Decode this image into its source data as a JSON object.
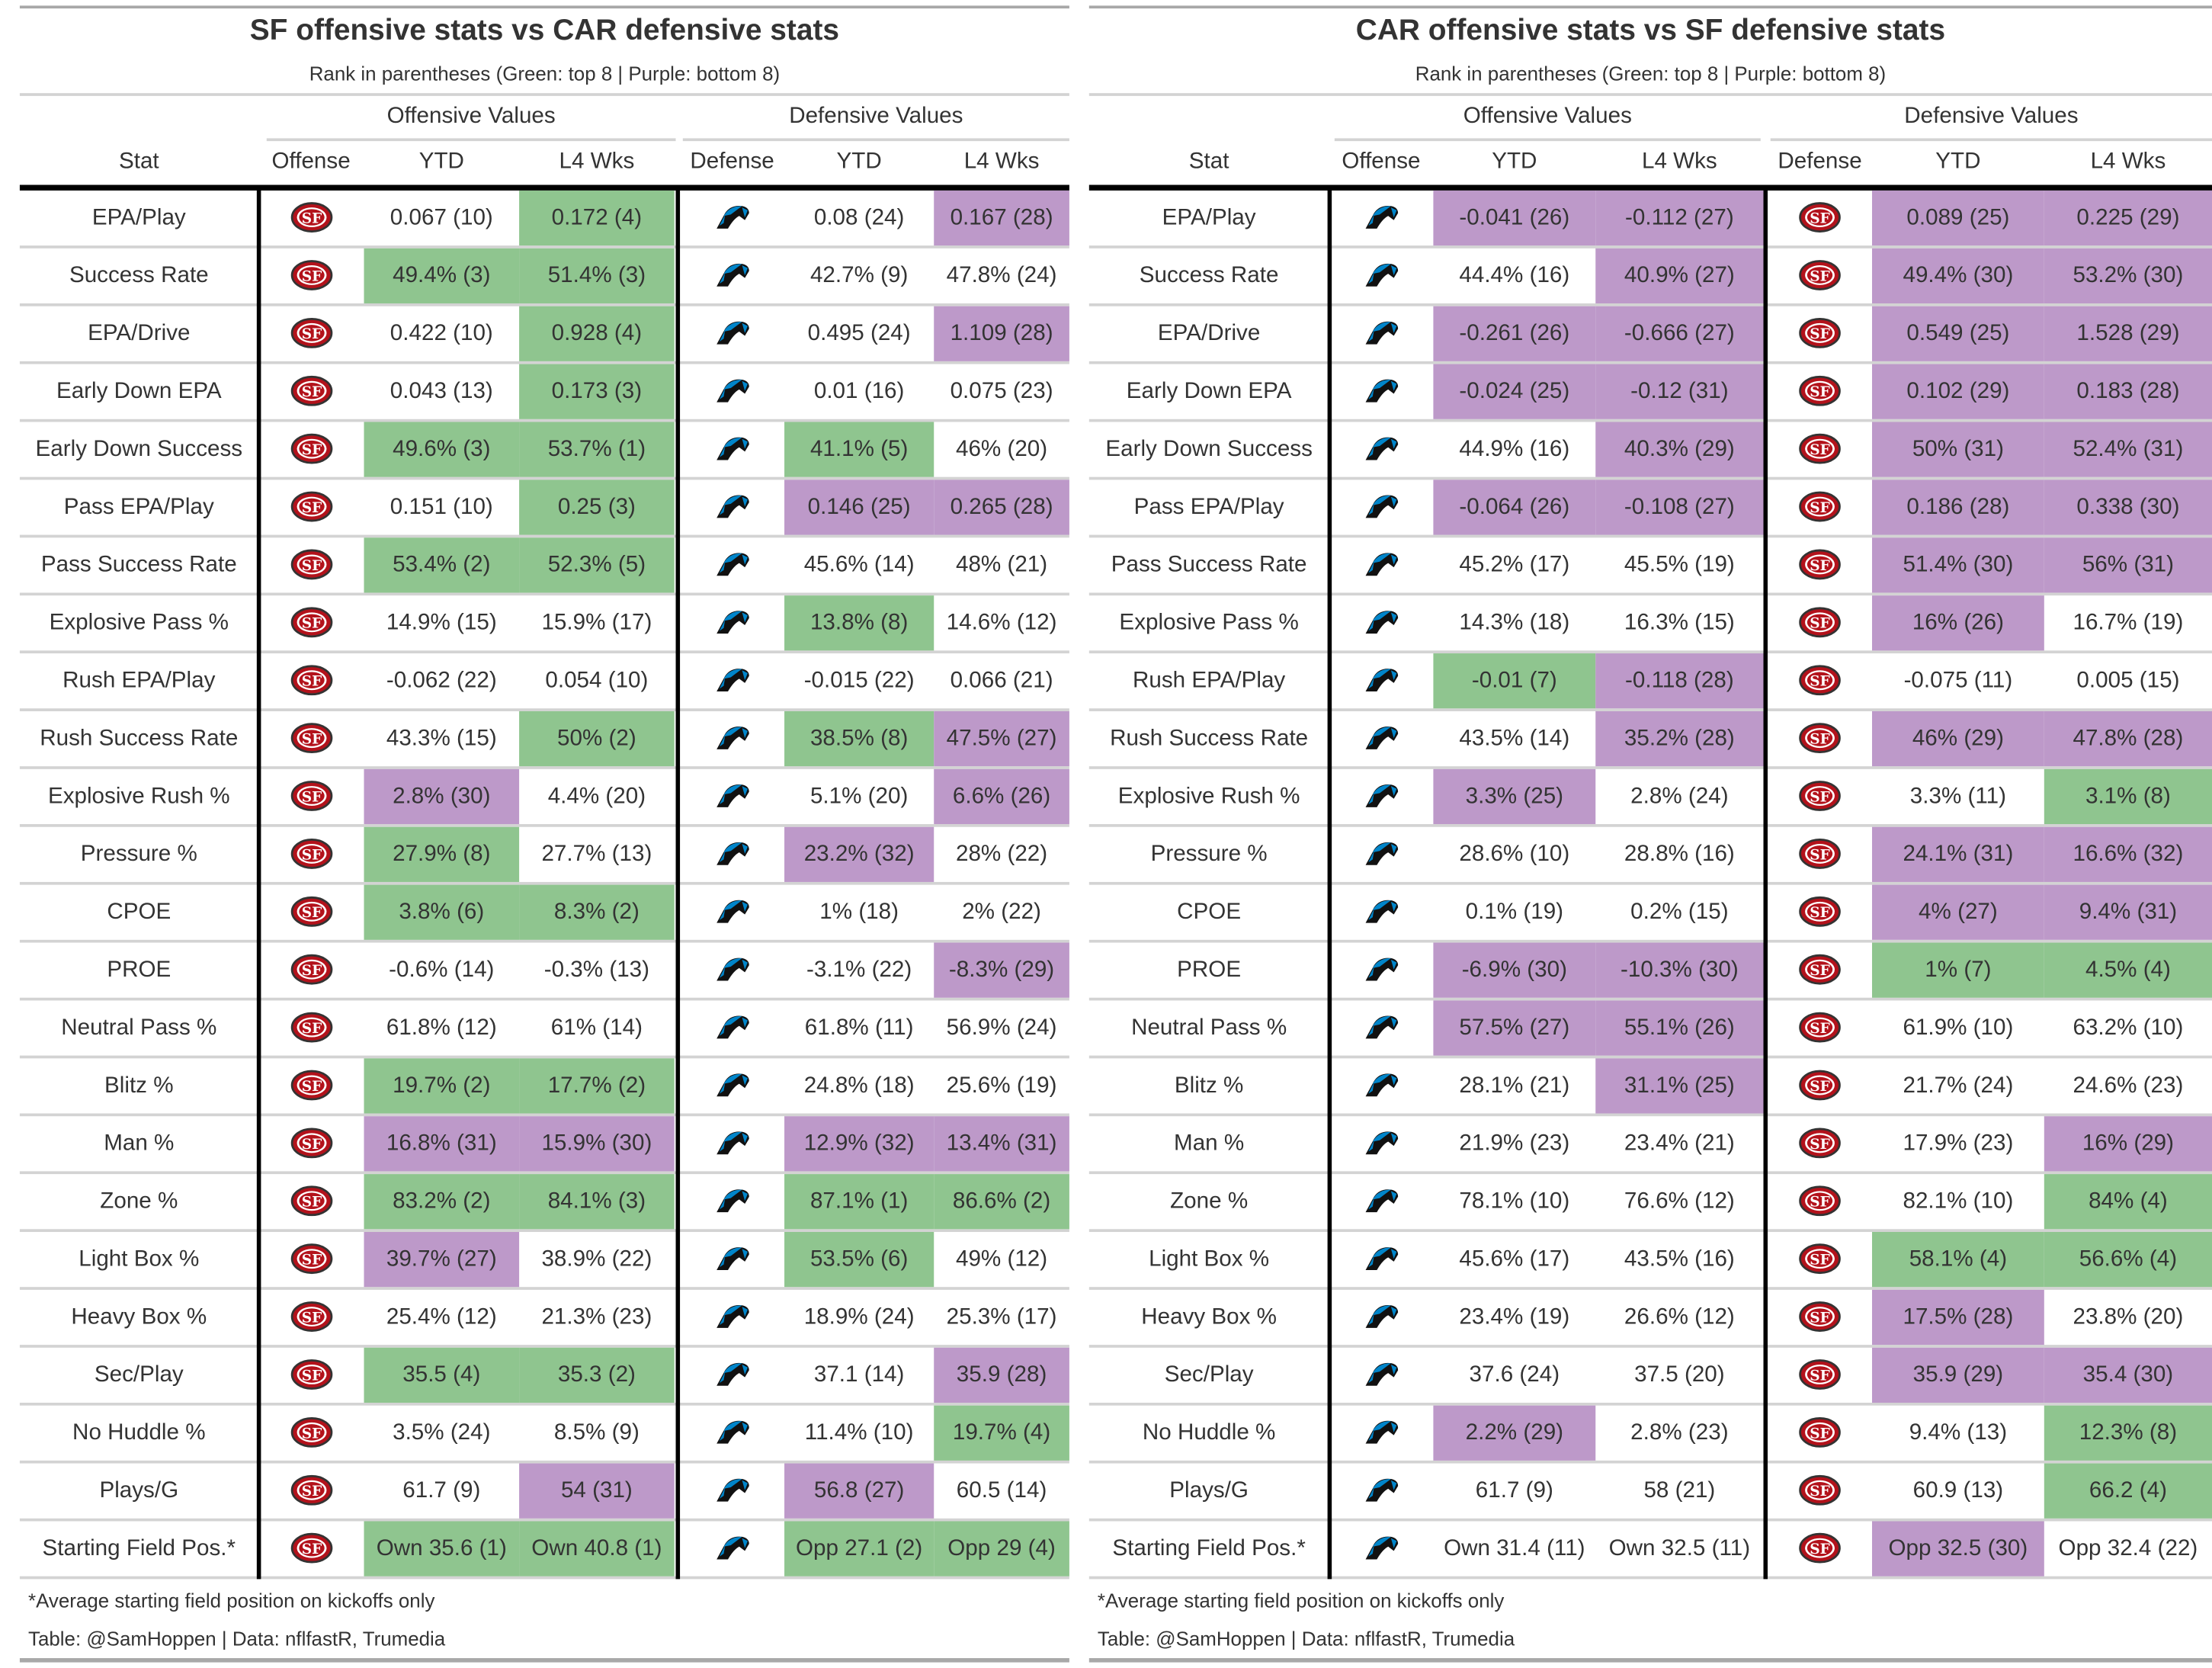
{
  "colors": {
    "green": "#8fc58f",
    "purple": "#bd99c9"
  },
  "tables": [
    {
      "title": "SF offensive stats vs CAR defensive stats",
      "subtitle": "Rank in parentheses (Green: top 8 | Purple: bottom 8)",
      "spanners": [
        "Offensive Values",
        "Defensive Values"
      ],
      "columns": [
        "Stat",
        "Offense",
        "YTD",
        "L4 Wks",
        "Defense",
        "YTD",
        "L4 Wks"
      ],
      "offense_logo": "sf-49ers-logo-icon",
      "defense_logo": "car-panthers-logo-icon",
      "footnote": "*Average starting field position on kickoffs only",
      "credit": "Table: @SamHoppen | Data: nflfastR, Trumedia",
      "rows": [
        {
          "stat": "EPA/Play",
          "cells": [
            [
              "0.067 (10)",
              ""
            ],
            [
              "0.172 (4)",
              "g"
            ],
            [
              "0.08 (24)",
              ""
            ],
            [
              "0.167 (28)",
              "p"
            ]
          ]
        },
        {
          "stat": "Success Rate",
          "cells": [
            [
              "49.4% (3)",
              "g"
            ],
            [
              "51.4% (3)",
              "g"
            ],
            [
              "42.7% (9)",
              ""
            ],
            [
              "47.8% (24)",
              ""
            ]
          ]
        },
        {
          "stat": "EPA/Drive",
          "cells": [
            [
              "0.422 (10)",
              ""
            ],
            [
              "0.928 (4)",
              "g"
            ],
            [
              "0.495 (24)",
              ""
            ],
            [
              "1.109 (28)",
              "p"
            ]
          ]
        },
        {
          "stat": "Early Down EPA",
          "cells": [
            [
              "0.043 (13)",
              ""
            ],
            [
              "0.173 (3)",
              "g"
            ],
            [
              "0.01 (16)",
              ""
            ],
            [
              "0.075 (23)",
              ""
            ]
          ]
        },
        {
          "stat": "Early Down Success",
          "cells": [
            [
              "49.6% (3)",
              "g"
            ],
            [
              "53.7% (1)",
              "g"
            ],
            [
              "41.1% (5)",
              "g"
            ],
            [
              "46% (20)",
              ""
            ]
          ]
        },
        {
          "stat": "Pass EPA/Play",
          "cells": [
            [
              "0.151 (10)",
              ""
            ],
            [
              "0.25 (3)",
              "g"
            ],
            [
              "0.146 (25)",
              "p"
            ],
            [
              "0.265 (28)",
              "p"
            ]
          ]
        },
        {
          "stat": "Pass Success Rate",
          "cells": [
            [
              "53.4% (2)",
              "g"
            ],
            [
              "52.3% (5)",
              "g"
            ],
            [
              "45.6% (14)",
              ""
            ],
            [
              "48% (21)",
              ""
            ]
          ]
        },
        {
          "stat": "Explosive Pass %",
          "cells": [
            [
              "14.9% (15)",
              ""
            ],
            [
              "15.9% (17)",
              ""
            ],
            [
              "13.8% (8)",
              "g"
            ],
            [
              "14.6% (12)",
              ""
            ]
          ]
        },
        {
          "stat": "Rush EPA/Play",
          "cells": [
            [
              "-0.062 (22)",
              ""
            ],
            [
              "0.054 (10)",
              ""
            ],
            [
              "-0.015 (22)",
              ""
            ],
            [
              "0.066 (21)",
              ""
            ]
          ]
        },
        {
          "stat": "Rush Success Rate",
          "cells": [
            [
              "43.3% (15)",
              ""
            ],
            [
              "50% (2)",
              "g"
            ],
            [
              "38.5% (8)",
              "g"
            ],
            [
              "47.5% (27)",
              "p"
            ]
          ]
        },
        {
          "stat": "Explosive Rush %",
          "cells": [
            [
              "2.8% (30)",
              "p"
            ],
            [
              "4.4% (20)",
              ""
            ],
            [
              "5.1% (20)",
              ""
            ],
            [
              "6.6% (26)",
              "p"
            ]
          ]
        },
        {
          "stat": "Pressure %",
          "cells": [
            [
              "27.9% (8)",
              "g"
            ],
            [
              "27.7% (13)",
              ""
            ],
            [
              "23.2% (32)",
              "p"
            ],
            [
              "28% (22)",
              ""
            ]
          ]
        },
        {
          "stat": "CPOE",
          "cells": [
            [
              "3.8% (6)",
              "g"
            ],
            [
              "8.3% (2)",
              "g"
            ],
            [
              "1% (18)",
              ""
            ],
            [
              "2% (22)",
              ""
            ]
          ]
        },
        {
          "stat": "PROE",
          "cells": [
            [
              "-0.6% (14)",
              ""
            ],
            [
              "-0.3% (13)",
              ""
            ],
            [
              "-3.1% (22)",
              ""
            ],
            [
              "-8.3% (29)",
              "p"
            ]
          ]
        },
        {
          "stat": "Neutral Pass %",
          "cells": [
            [
              "61.8% (12)",
              ""
            ],
            [
              "61% (14)",
              ""
            ],
            [
              "61.8% (11)",
              ""
            ],
            [
              "56.9% (24)",
              ""
            ]
          ]
        },
        {
          "stat": "Blitz %",
          "cells": [
            [
              "19.7% (2)",
              "g"
            ],
            [
              "17.7% (2)",
              "g"
            ],
            [
              "24.8% (18)",
              ""
            ],
            [
              "25.6% (19)",
              ""
            ]
          ]
        },
        {
          "stat": "Man %",
          "cells": [
            [
              "16.8% (31)",
              "p"
            ],
            [
              "15.9% (30)",
              "p"
            ],
            [
              "12.9% (32)",
              "p"
            ],
            [
              "13.4% (31)",
              "p"
            ]
          ]
        },
        {
          "stat": "Zone %",
          "cells": [
            [
              "83.2% (2)",
              "g"
            ],
            [
              "84.1% (3)",
              "g"
            ],
            [
              "87.1% (1)",
              "g"
            ],
            [
              "86.6% (2)",
              "g"
            ]
          ]
        },
        {
          "stat": "Light Box %",
          "cells": [
            [
              "39.7% (27)",
              "p"
            ],
            [
              "38.9% (22)",
              ""
            ],
            [
              "53.5% (6)",
              "g"
            ],
            [
              "49% (12)",
              ""
            ]
          ]
        },
        {
          "stat": "Heavy Box %",
          "cells": [
            [
              "25.4% (12)",
              ""
            ],
            [
              "21.3% (23)",
              ""
            ],
            [
              "18.9% (24)",
              ""
            ],
            [
              "25.3% (17)",
              ""
            ]
          ]
        },
        {
          "stat": "Sec/Play",
          "cells": [
            [
              "35.5 (4)",
              "g"
            ],
            [
              "35.3 (2)",
              "g"
            ],
            [
              "37.1 (14)",
              ""
            ],
            [
              "35.9 (28)",
              "p"
            ]
          ]
        },
        {
          "stat": "No Huddle %",
          "cells": [
            [
              "3.5% (24)",
              ""
            ],
            [
              "8.5% (9)",
              ""
            ],
            [
              "11.4% (10)",
              ""
            ],
            [
              "19.7% (4)",
              "g"
            ]
          ]
        },
        {
          "stat": "Plays/G",
          "cells": [
            [
              "61.7 (9)",
              ""
            ],
            [
              "54 (31)",
              "p"
            ],
            [
              "56.8 (27)",
              "p"
            ],
            [
              "60.5 (14)",
              ""
            ]
          ]
        },
        {
          "stat": "Starting Field Pos.*",
          "cells": [
            [
              "Own 35.6 (1)",
              "g"
            ],
            [
              "Own 40.8 (1)",
              "g"
            ],
            [
              "Opp 27.1 (2)",
              "g"
            ],
            [
              "Opp 29 (4)",
              "g"
            ]
          ]
        }
      ]
    },
    {
      "title": "CAR offensive stats vs SF defensive stats",
      "subtitle": "Rank in parentheses (Green: top 8 | Purple: bottom 8)",
      "spanners": [
        "Offensive Values",
        "Defensive Values"
      ],
      "columns": [
        "Stat",
        "Offense",
        "YTD",
        "L4 Wks",
        "Defense",
        "YTD",
        "L4 Wks"
      ],
      "offense_logo": "car-panthers-logo-icon",
      "defense_logo": "sf-49ers-logo-icon",
      "footnote": "*Average starting field position on kickoffs only",
      "credit": "Table: @SamHoppen | Data: nflfastR, Trumedia",
      "rows": [
        {
          "stat": "EPA/Play",
          "cells": [
            [
              "-0.041 (26)",
              "p"
            ],
            [
              "-0.112 (27)",
              "p"
            ],
            [
              "0.089 (25)",
              "p"
            ],
            [
              "0.225 (29)",
              "p"
            ]
          ]
        },
        {
          "stat": "Success Rate",
          "cells": [
            [
              "44.4% (16)",
              ""
            ],
            [
              "40.9% (27)",
              "p"
            ],
            [
              "49.4% (30)",
              "p"
            ],
            [
              "53.2% (30)",
              "p"
            ]
          ]
        },
        {
          "stat": "EPA/Drive",
          "cells": [
            [
              "-0.261 (26)",
              "p"
            ],
            [
              "-0.666 (27)",
              "p"
            ],
            [
              "0.549 (25)",
              "p"
            ],
            [
              "1.528 (29)",
              "p"
            ]
          ]
        },
        {
          "stat": "Early Down EPA",
          "cells": [
            [
              "-0.024 (25)",
              "p"
            ],
            [
              "-0.12 (31)",
              "p"
            ],
            [
              "0.102 (29)",
              "p"
            ],
            [
              "0.183 (28)",
              "p"
            ]
          ]
        },
        {
          "stat": "Early Down Success",
          "cells": [
            [
              "44.9% (16)",
              ""
            ],
            [
              "40.3% (29)",
              "p"
            ],
            [
              "50% (31)",
              "p"
            ],
            [
              "52.4% (31)",
              "p"
            ]
          ]
        },
        {
          "stat": "Pass EPA/Play",
          "cells": [
            [
              "-0.064 (26)",
              "p"
            ],
            [
              "-0.108 (27)",
              "p"
            ],
            [
              "0.186 (28)",
              "p"
            ],
            [
              "0.338 (30)",
              "p"
            ]
          ]
        },
        {
          "stat": "Pass Success Rate",
          "cells": [
            [
              "45.2% (17)",
              ""
            ],
            [
              "45.5% (19)",
              ""
            ],
            [
              "51.4% (30)",
              "p"
            ],
            [
              "56% (31)",
              "p"
            ]
          ]
        },
        {
          "stat": "Explosive Pass %",
          "cells": [
            [
              "14.3% (18)",
              ""
            ],
            [
              "16.3% (15)",
              ""
            ],
            [
              "16% (26)",
              "p"
            ],
            [
              "16.7% (19)",
              ""
            ]
          ]
        },
        {
          "stat": "Rush EPA/Play",
          "cells": [
            [
              "-0.01 (7)",
              "g"
            ],
            [
              "-0.118 (28)",
              "p"
            ],
            [
              "-0.075 (11)",
              ""
            ],
            [
              "0.005 (15)",
              ""
            ]
          ]
        },
        {
          "stat": "Rush Success Rate",
          "cells": [
            [
              "43.5% (14)",
              ""
            ],
            [
              "35.2% (28)",
              "p"
            ],
            [
              "46% (29)",
              "p"
            ],
            [
              "47.8% (28)",
              "p"
            ]
          ]
        },
        {
          "stat": "Explosive Rush %",
          "cells": [
            [
              "3.3% (25)",
              "p"
            ],
            [
              "2.8% (24)",
              ""
            ],
            [
              "3.3% (11)",
              ""
            ],
            [
              "3.1% (8)",
              "g"
            ]
          ]
        },
        {
          "stat": "Pressure %",
          "cells": [
            [
              "28.6% (10)",
              ""
            ],
            [
              "28.8% (16)",
              ""
            ],
            [
              "24.1% (31)",
              "p"
            ],
            [
              "16.6% (32)",
              "p"
            ]
          ]
        },
        {
          "stat": "CPOE",
          "cells": [
            [
              "0.1% (19)",
              ""
            ],
            [
              "0.2% (15)",
              ""
            ],
            [
              "4% (27)",
              "p"
            ],
            [
              "9.4% (31)",
              "p"
            ]
          ]
        },
        {
          "stat": "PROE",
          "cells": [
            [
              "-6.9% (30)",
              "p"
            ],
            [
              "-10.3% (30)",
              "p"
            ],
            [
              "1% (7)",
              "g"
            ],
            [
              "4.5% (4)",
              "g"
            ]
          ]
        },
        {
          "stat": "Neutral Pass %",
          "cells": [
            [
              "57.5% (27)",
              "p"
            ],
            [
              "55.1% (26)",
              "p"
            ],
            [
              "61.9% (10)",
              ""
            ],
            [
              "63.2% (10)",
              ""
            ]
          ]
        },
        {
          "stat": "Blitz %",
          "cells": [
            [
              "28.1% (21)",
              ""
            ],
            [
              "31.1% (25)",
              "p"
            ],
            [
              "21.7% (24)",
              ""
            ],
            [
              "24.6% (23)",
              ""
            ]
          ]
        },
        {
          "stat": "Man %",
          "cells": [
            [
              "21.9% (23)",
              ""
            ],
            [
              "23.4% (21)",
              ""
            ],
            [
              "17.9% (23)",
              ""
            ],
            [
              "16% (29)",
              "p"
            ]
          ]
        },
        {
          "stat": "Zone %",
          "cells": [
            [
              "78.1% (10)",
              ""
            ],
            [
              "76.6% (12)",
              ""
            ],
            [
              "82.1% (10)",
              ""
            ],
            [
              "84% (4)",
              "g"
            ]
          ]
        },
        {
          "stat": "Light Box %",
          "cells": [
            [
              "45.6% (17)",
              ""
            ],
            [
              "43.5% (16)",
              ""
            ],
            [
              "58.1% (4)",
              "g"
            ],
            [
              "56.6% (4)",
              "g"
            ]
          ]
        },
        {
          "stat": "Heavy Box %",
          "cells": [
            [
              "23.4% (19)",
              ""
            ],
            [
              "26.6% (12)",
              ""
            ],
            [
              "17.5% (28)",
              "p"
            ],
            [
              "23.8% (20)",
              ""
            ]
          ]
        },
        {
          "stat": "Sec/Play",
          "cells": [
            [
              "37.6 (24)",
              ""
            ],
            [
              "37.5 (20)",
              ""
            ],
            [
              "35.9 (29)",
              "p"
            ],
            [
              "35.4 (30)",
              "p"
            ]
          ]
        },
        {
          "stat": "No Huddle %",
          "cells": [
            [
              "2.2% (29)",
              "p"
            ],
            [
              "2.8% (23)",
              ""
            ],
            [
              "9.4% (13)",
              ""
            ],
            [
              "12.3% (8)",
              "g"
            ]
          ]
        },
        {
          "stat": "Plays/G",
          "cells": [
            [
              "61.7 (9)",
              ""
            ],
            [
              "58 (21)",
              ""
            ],
            [
              "60.9 (13)",
              ""
            ],
            [
              "66.2 (4)",
              "g"
            ]
          ]
        },
        {
          "stat": "Starting Field Pos.*",
          "cells": [
            [
              "Own 31.4 (11)",
              ""
            ],
            [
              "Own 32.5 (11)",
              ""
            ],
            [
              "Opp 32.5 (30)",
              "p"
            ],
            [
              "Opp 32.4 (22)",
              ""
            ]
          ]
        }
      ]
    }
  ]
}
